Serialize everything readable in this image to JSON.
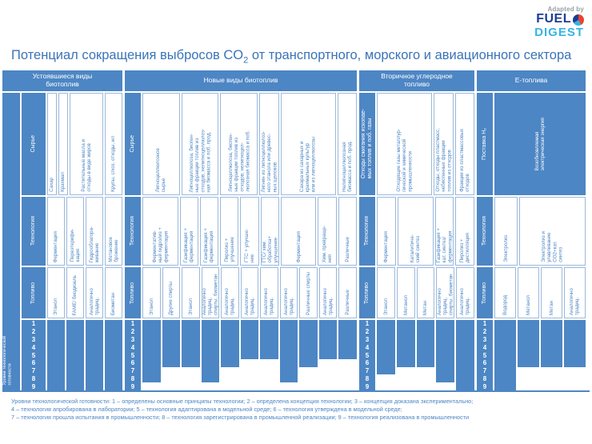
{
  "logo": {
    "adapted_by": "Adapted by",
    "fuel": "FUEL",
    "digest": "DIGEST"
  },
  "title": {
    "prefix": "Потенциал сокращения выбросов CO",
    "sub": "2",
    "suffix": " от транспортного, морского и авиационного сектора"
  },
  "colors": {
    "blue": "#4d86c4",
    "border": "#9bb9dc",
    "title_text": "#3a74b8",
    "logo_fuel": "#1d3d91",
    "logo_digest": "#35b4e6",
    "logo_red": "#e8452f"
  },
  "trl_axis_label": "Уровни технологической\nготовности",
  "scale_digits": [
    "1",
    "2",
    "3",
    "4",
    "5",
    "6",
    "7",
    "8",
    "9"
  ],
  "footnote": {
    "lines": [
      "Уровни технологической готовности: 1 – определены основные принципы технологии; 2 – определена концепция технологии; 3 – концепция доказана экспериментально;",
      "4 – технология апробирована в лаборатории; 5 – технология адаптирована в модельной среде; 6 – технология утверждена в модельной среде;",
      "7 – технология прошла испытания в промышленности; 8 – технология зарегистрирована в промышленной реализации; 9 – технология реализована в промышленности"
    ]
  },
  "chart_data": {
    "type": "bar",
    "title": "Потенциал сокращения выбросов CO2 от транспортного, морского и авиационного сектора",
    "ylabel": "Уровни технологической готовности",
    "ylim": [
      0,
      9
    ],
    "groups": [
      {
        "title": "Устоявшиеся виды\nбиотоплив",
        "row_headers": {
          "feedstock": "Сырье",
          "tech": "Технология",
          "fuel": "Топливо"
        },
        "feedstocks": [
          {
            "label": "Сахар",
            "span": 0.5
          },
          {
            "label": "Крахмал",
            "span": 0.5
          },
          {
            "label": "Растительные масла и\nотходы в виде жиров",
            "span": 2
          },
          {
            "label": "Крупы, с/хоз. отходы, ил",
            "span": 1
          }
        ],
        "techs": [
          {
            "label": "Ферментация",
            "span": 1
          },
          {
            "label": "Переэтерифи-\nкация",
            "span": 1
          },
          {
            "label": "Гидрооблагора-\nживание",
            "span": 1
          },
          {
            "label": "Метановое\nброжение",
            "span": 1
          }
        ],
        "fuels": [
          {
            "label": "Этанол",
            "trl": 9
          },
          {
            "label": "FAME/ биодизель",
            "trl": 9
          },
          {
            "label": "Аналогично традиц.",
            "trl": 9
          },
          {
            "label": "Биометан",
            "trl": 9
          }
        ]
      },
      {
        "title": "Новые виды биотоплив",
        "row_headers": {
          "feedstock": "Сырье",
          "tech": "Технология",
          "fuel": "Топливо"
        },
        "feedstocks": [
          {
            "label": "Лигноцеллюлозное\nсырье",
            "span": 2
          },
          {
            "label": "Лигноцеллюлоза, биоген-\nные фракции топлив из\nотходов, нелигноцеллюлоз-\nная биомасса и поб. прод.",
            "span": 2
          },
          {
            "label": "Лигноцеллюлоза, биоген-\nные фракции топлив из\nотходов, нелигноцел-\nлюлозная биомасса и поб.",
            "span": 2
          },
          {
            "label": "Лигнин из лигноцеллюлоз-\nного этанола или древес-\nных щелоков",
            "span": 1
          },
          {
            "label": "Сахара из сахарных и\nкрахмальных культур\nили из лигноцеллюлозы",
            "span": 3
          },
          {
            "label": "Нелигноцеллюлозная\nбиомасса и поб. прод.",
            "span": 1
          }
        ],
        "techs": [
          {
            "label": "Ферментатив-\nный гидролиз +\nферментация",
            "span": 2
          },
          {
            "label": "Газификация +\nферментация",
            "span": 1
          },
          {
            "label": "Газификация +\nферментация",
            "span": 1
          },
          {
            "label": "Пиролиз +\nулучшение",
            "span": 1
          },
          {
            "label": "ГТС + улучше-\nние",
            "span": 1
          },
          {
            "label": "ГТС/ хим.\nобработка+\nулучшение",
            "span": 1
          },
          {
            "label": "Ферментация",
            "span": 2
          },
          {
            "label": "Хим. превраще-\nния",
            "span": 1
          },
          {
            "label": "Различные",
            "span": 1
          }
        ],
        "fuels": [
          {
            "label": "Этанол",
            "trl": 8
          },
          {
            "label": "Другие спирты",
            "trl": 6
          },
          {
            "label": "Этанол",
            "trl": 6
          },
          {
            "label": "Аналогично традиц,\nспирты, биометан",
            "trl": 8
          },
          {
            "label": "Аналогично традиц.",
            "trl": 6
          },
          {
            "label": "Аналогично традиц.",
            "trl": 5
          },
          {
            "label": "Аналогично традиц.",
            "trl": 5
          },
          {
            "label": "Аналогично традиц.",
            "trl": 8
          },
          {
            "label": "Различные спирты",
            "trl": 6
          },
          {
            "label": "Аналогично традиц.",
            "trl": 5
          },
          {
            "label": "Различные",
            "trl": 5
          }
        ]
      },
      {
        "title": "Вторичное углеродное\nтопливо",
        "row_headers": {
          "feedstock": "Отходы сжигания ископае-\nмых топлив и поб. газы",
          "tech": "Технология",
          "fuel": "Топливо"
        },
        "feedstocks": [
          {
            "label": "Отходящие газы металлур-\nгической и химической\nпромышленности",
            "span": 3
          },
          {
            "label": "Отходы, отходы пластмасс,\nнебиогенные фракции\nтоплив из отходов",
            "span": 1
          },
          {
            "label": "Фракции из пластмассовых\nотходов",
            "span": 1
          }
        ],
        "techs": [
          {
            "label": "Ферментация",
            "span": 1
          },
          {
            "label": "Каталитиче-\nский синтез",
            "span": 2
          },
          {
            "label": "Газификация +\nкат. синтез/\nферментация",
            "span": 1
          },
          {
            "label": "Пиролиз +\nдистилляция",
            "span": 1
          }
        ],
        "fuels": [
          {
            "label": "Этанол",
            "trl": 7
          },
          {
            "label": "Метанол",
            "trl": 6
          },
          {
            "label": "Метан",
            "trl": 6
          },
          {
            "label": "Аналогично традиц,\nспирты, биометан",
            "trl": 8
          },
          {
            "label": "Аналогично традиц.",
            "trl": 9
          }
        ]
      },
      {
        "title": "Е-топлива",
        "row_headers": {
          "feedstock": "Поставка H₂",
          "tech": "Технология",
          "fuel": "Топливо"
        },
        "feedstocks": [
          {
            "label": "Возобновляемая\nэлектрическая энергия",
            "span": 4,
            "blue": true
          }
        ],
        "techs": [
          {
            "label": "Электролиз",
            "span": 1
          },
          {
            "label": "Электролиз и\nулавливание\nCO2+кат.\nсинтез",
            "span": 3
          }
        ],
        "fuels": [
          {
            "label": "Водород",
            "trl": 9
          },
          {
            "label": "Метанол",
            "trl": 6
          },
          {
            "label": "Метан",
            "trl": 6
          },
          {
            "label": "Аналогично традиц.",
            "trl": 6
          }
        ]
      }
    ]
  }
}
